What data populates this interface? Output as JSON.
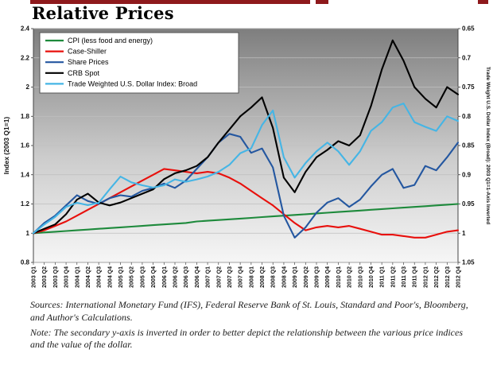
{
  "page": {
    "title": "Relative Prices"
  },
  "colors": {
    "header_rule": "#8e191c"
  },
  "footnotes": {
    "sources": "Sources: International Monetary Fund (IFS), Federal Reserve Bank of St. Louis, Standard and Poor's, Bloomberg, and Author's Calculations.",
    "note": "Note: The secondary y-axis is inverted in order to better depict the relationship between the various price indices and the value of the dollar."
  },
  "chart_data": {
    "type": "line",
    "title": "Relative Prices",
    "grid": true,
    "legend_position": "top-left",
    "plot_background": {
      "top": "#7e7e7e",
      "mid": "#cccccc",
      "bottom": "#f6f6f6"
    },
    "x_labels": [
      "2003 Q1",
      "2003 Q2",
      "2003 Q3",
      "2003 Q4",
      "2004 Q1",
      "2004 Q2",
      "2004 Q3",
      "2004 Q4",
      "2005 Q1",
      "2005 Q2",
      "2005 Q3",
      "2005 Q4",
      "2006 Q1",
      "2006 Q2",
      "2006 Q3",
      "2006 Q4",
      "2007 Q1",
      "2007 Q2",
      "2007 Q3",
      "2007 Q4",
      "2008 Q1",
      "2008 Q2",
      "2008 Q3",
      "2008 Q4",
      "2009 Q1",
      "2009 Q2",
      "2009 Q3",
      "2009 Q4",
      "2010 Q1",
      "2010 Q2",
      "2010 Q3",
      "2010 Q4",
      "2011 Q1",
      "2011 Q2",
      "2011 Q3",
      "2011 Q4",
      "2012 Q1",
      "2012 Q2",
      "2012 Q3",
      "2012 Q4"
    ],
    "left_axis": {
      "label": "Index (2003 Q1=1)",
      "min": 0.8,
      "max": 2.4,
      "ticks": [
        0.8,
        1,
        1.2,
        1.4,
        1.6,
        1.8,
        2,
        2.2,
        2.4
      ]
    },
    "right_axis": {
      "label": "Trade Weight U.S. Dollar Index (Broad): 2003 Q1=1-Axis Inverted",
      "min": 0.65,
      "max": 1.05,
      "inverted": true,
      "ticks": [
        0.65,
        0.7,
        0.75,
        0.8,
        0.85,
        0.9,
        0.95,
        1,
        1.05
      ]
    },
    "series": [
      {
        "name": "CPI (less food and energy)",
        "color": "#1e8a3c",
        "axis": "left",
        "values": [
          1.0,
          1.005,
          1.01,
          1.015,
          1.02,
          1.025,
          1.03,
          1.035,
          1.04,
          1.045,
          1.05,
          1.055,
          1.06,
          1.065,
          1.07,
          1.08,
          1.085,
          1.09,
          1.095,
          1.1,
          1.105,
          1.11,
          1.115,
          1.12,
          1.125,
          1.13,
          1.135,
          1.14,
          1.145,
          1.15,
          1.155,
          1.16,
          1.165,
          1.17,
          1.175,
          1.18,
          1.185,
          1.19,
          1.195,
          1.2
        ]
      },
      {
        "name": "Case-Shiller",
        "color": "#e8100c",
        "axis": "left",
        "values": [
          1.0,
          1.02,
          1.05,
          1.08,
          1.12,
          1.16,
          1.2,
          1.24,
          1.28,
          1.32,
          1.36,
          1.4,
          1.44,
          1.43,
          1.42,
          1.41,
          1.42,
          1.41,
          1.38,
          1.34,
          1.29,
          1.24,
          1.19,
          1.13,
          1.07,
          1.02,
          1.04,
          1.05,
          1.04,
          1.05,
          1.03,
          1.01,
          0.99,
          0.99,
          0.98,
          0.97,
          0.97,
          0.99,
          1.01,
          1.02
        ]
      },
      {
        "name": "Share Prices",
        "color": "#2457a0",
        "axis": "left",
        "values": [
          1.0,
          1.07,
          1.12,
          1.19,
          1.26,
          1.22,
          1.2,
          1.24,
          1.26,
          1.25,
          1.29,
          1.31,
          1.34,
          1.31,
          1.36,
          1.44,
          1.52,
          1.62,
          1.68,
          1.66,
          1.55,
          1.58,
          1.45,
          1.12,
          0.97,
          1.04,
          1.14,
          1.21,
          1.24,
          1.18,
          1.23,
          1.32,
          1.4,
          1.44,
          1.31,
          1.33,
          1.46,
          1.43,
          1.52,
          1.62
        ]
      },
      {
        "name": "CRB Spot",
        "color": "#000000",
        "axis": "left",
        "values": [
          1.0,
          1.03,
          1.06,
          1.13,
          1.23,
          1.27,
          1.21,
          1.19,
          1.21,
          1.24,
          1.27,
          1.3,
          1.37,
          1.41,
          1.43,
          1.46,
          1.52,
          1.62,
          1.71,
          1.8,
          1.86,
          1.93,
          1.72,
          1.38,
          1.28,
          1.42,
          1.52,
          1.57,
          1.63,
          1.6,
          1.67,
          1.87,
          2.12,
          2.32,
          2.18,
          2.0,
          1.92,
          1.86,
          2.0,
          1.95
        ]
      },
      {
        "name": "Trade Weighted U.S. Dollar Index: Broad",
        "color": "#45b5e5",
        "axis": "right",
        "values": [
          1.0,
          0.985,
          0.972,
          0.955,
          0.948,
          0.952,
          0.948,
          0.925,
          0.903,
          0.913,
          0.918,
          0.922,
          0.918,
          0.908,
          0.912,
          0.908,
          0.903,
          0.895,
          0.883,
          0.863,
          0.855,
          0.815,
          0.79,
          0.87,
          0.905,
          0.88,
          0.86,
          0.845,
          0.86,
          0.883,
          0.86,
          0.825,
          0.81,
          0.785,
          0.778,
          0.81,
          0.818,
          0.825,
          0.8,
          0.808
        ]
      }
    ]
  }
}
